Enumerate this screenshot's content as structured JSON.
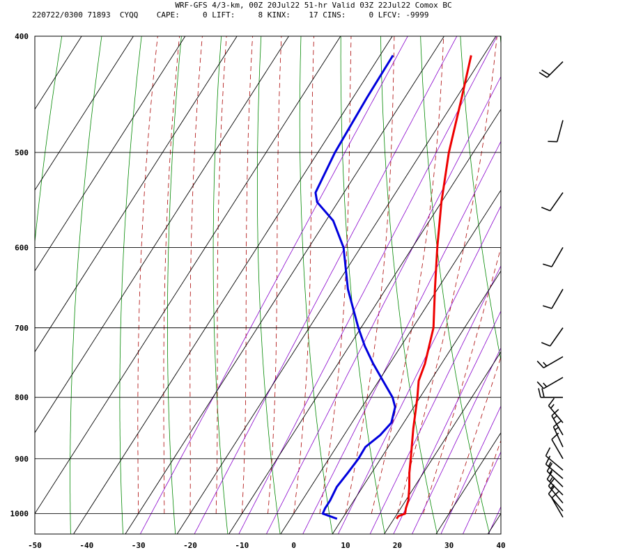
{
  "header": {
    "line1": "WRF-GFS 4/3-km, 00Z 20Jul22 51-hr Valid 03Z 22Jul22 Comox BC",
    "line2": "220722/0300 71893  CYQQ    CAPE:     0 LIFT:     8 KINX:    17 CINS:     0 LFCV: -9999"
  },
  "colors": {
    "temperature": "#ee0000",
    "dewpoint": "#0000dd",
    "isotherm": "#000000",
    "isobar": "#000000",
    "dry_adiabat": "#008800",
    "moist_adiabat": "#aa0000",
    "mixing_ratio": "#8800cc",
    "wind_barb": "#000000"
  },
  "chart_data": {
    "type": "skew-t",
    "title": "",
    "xlabel": "",
    "ylabel": "",
    "x_ticks": [
      -50,
      -40,
      -30,
      -20,
      -10,
      0,
      10,
      20,
      30,
      40
    ],
    "y_ticks": [
      400,
      500,
      600,
      700,
      800,
      900,
      1000
    ],
    "xlim": [
      -50,
      40
    ],
    "ylim": [
      1040,
      400
    ],
    "y_scale": "log",
    "grid": true,
    "series": [
      {
        "points": [
          {
            "p": 1010,
            "t": 20.5
          },
          {
            "p": 1005,
            "t": 20.5
          },
          {
            "p": 1000,
            "t": 21.5
          },
          {
            "p": 990,
            "t": 21.0
          },
          {
            "p": 975,
            "t": 20.5
          },
          {
            "p": 950,
            "t": 19.0
          },
          {
            "p": 925,
            "t": 17.3
          },
          {
            "p": 900,
            "t": 15.8
          },
          {
            "p": 850,
            "t": 12.6
          },
          {
            "p": 800,
            "t": 9.5
          },
          {
            "p": 775,
            "t": 7.7
          },
          {
            "p": 750,
            "t": 6.8
          },
          {
            "p": 700,
            "t": 4.0
          },
          {
            "p": 650,
            "t": -0.5
          },
          {
            "p": 600,
            "t": -5.2
          },
          {
            "p": 550,
            "t": -10.0
          },
          {
            "p": 500,
            "t": -14.7
          },
          {
            "p": 450,
            "t": -19.0
          },
          {
            "p": 415,
            "t": -22.4
          }
        ]
      },
      {
        "points": [
          {
            "p": 1010,
            "t": 9.0
          },
          {
            "p": 1000,
            "t": 5.6
          },
          {
            "p": 990,
            "t": 5.4
          },
          {
            "p": 975,
            "t": 5.4
          },
          {
            "p": 950,
            "t": 5.0
          },
          {
            "p": 925,
            "t": 5.4
          },
          {
            "p": 900,
            "t": 5.7
          },
          {
            "p": 880,
            "t": 5.6
          },
          {
            "p": 860,
            "t": 7.0
          },
          {
            "p": 840,
            "t": 7.6
          },
          {
            "p": 815,
            "t": 6.4
          },
          {
            "p": 800,
            "t": 4.7
          },
          {
            "p": 775,
            "t": 0.8
          },
          {
            "p": 750,
            "t": -3.2
          },
          {
            "p": 725,
            "t": -7.0
          },
          {
            "p": 700,
            "t": -10.5
          },
          {
            "p": 650,
            "t": -17.3
          },
          {
            "p": 600,
            "t": -23.3
          },
          {
            "p": 570,
            "t": -28.6
          },
          {
            "p": 550,
            "t": -34.0
          },
          {
            "p": 540,
            "t": -35.5
          },
          {
            "p": 500,
            "t": -36.7
          },
          {
            "p": 450,
            "t": -37.3
          },
          {
            "p": 415,
            "t": -37.5
          }
        ]
      }
    ],
    "wind_barbs": [
      {
        "p": 1007,
        "dir": 330,
        "kt": 10
      },
      {
        "p": 995,
        "dir": 320,
        "kt": 12
      },
      {
        "p": 980,
        "dir": 320,
        "kt": 15
      },
      {
        "p": 965,
        "dir": 315,
        "kt": 15
      },
      {
        "p": 950,
        "dir": 315,
        "kt": 15
      },
      {
        "p": 935,
        "dir": 310,
        "kt": 15
      },
      {
        "p": 920,
        "dir": 310,
        "kt": 10
      },
      {
        "p": 900,
        "dir": 330,
        "kt": 10
      },
      {
        "p": 880,
        "dir": 335,
        "kt": 15
      },
      {
        "p": 860,
        "dir": 330,
        "kt": 15
      },
      {
        "p": 840,
        "dir": 320,
        "kt": 15
      },
      {
        "p": 800,
        "dir": 270,
        "kt": 20
      },
      {
        "p": 770,
        "dir": 240,
        "kt": 15
      },
      {
        "p": 740,
        "dir": 240,
        "kt": 15
      },
      {
        "p": 700,
        "dir": 215,
        "kt": 10
      },
      {
        "p": 650,
        "dir": 210,
        "kt": 10
      },
      {
        "p": 600,
        "dir": 210,
        "kt": 10
      },
      {
        "p": 540,
        "dir": 215,
        "kt": 10
      },
      {
        "p": 470,
        "dir": 195,
        "kt": 10
      },
      {
        "p": 420,
        "dir": 225,
        "kt": 20
      }
    ]
  }
}
